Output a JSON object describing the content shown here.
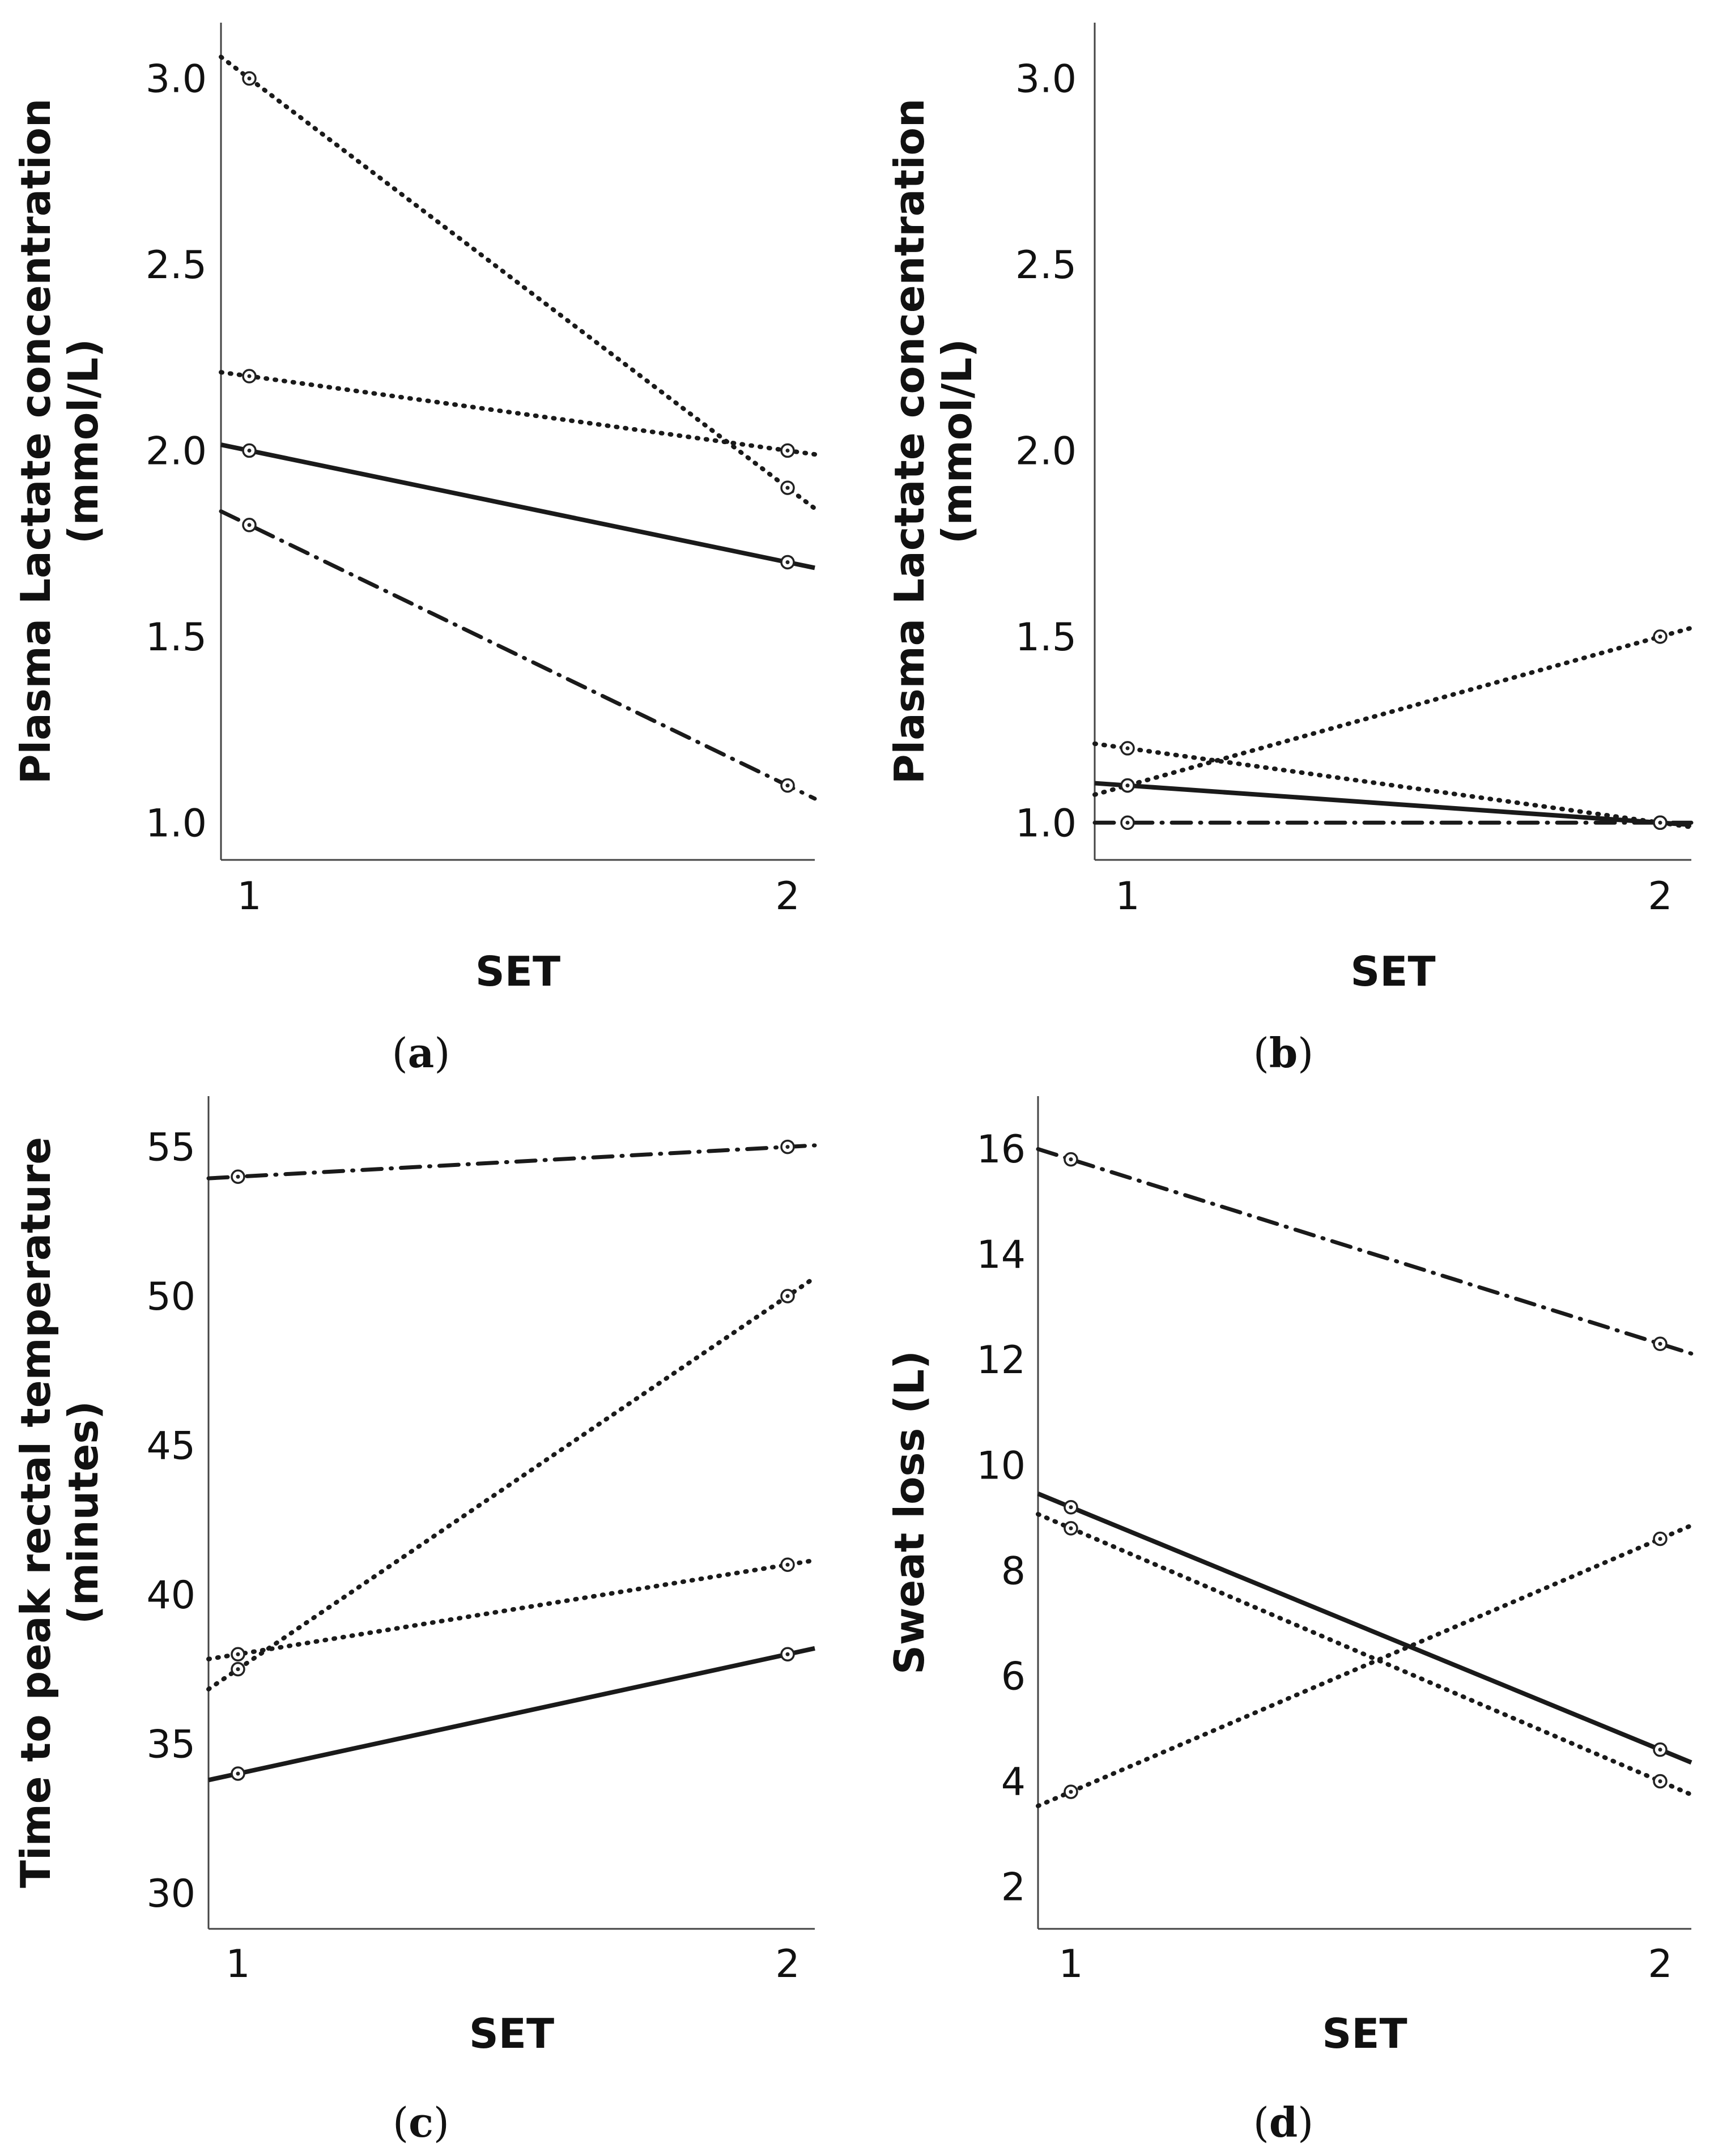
{
  "figure": {
    "panels": [
      {
        "id": "a",
        "label_open": "(",
        "label_letter": "a",
        "label_close": ")"
      },
      {
        "id": "b",
        "label_open": "(",
        "label_letter": "b",
        "label_close": ")"
      },
      {
        "id": "c",
        "label_open": "(",
        "label_letter": "c",
        "label_close": ")"
      },
      {
        "id": "d",
        "label_open": "(",
        "label_letter": "d",
        "label_close": ")"
      }
    ]
  },
  "chart_data": [
    {
      "id": "a",
      "type": "line",
      "xlabel": "SET",
      "ylabel": [
        "Plasma Lactate concentration",
        "(mmol/L)"
      ],
      "categories": [
        "1",
        "2"
      ],
      "ylim": [
        0.9,
        3.15
      ],
      "yticks": [
        1.0,
        1.5,
        2.0,
        2.5,
        3.0
      ],
      "ytick_labels": [
        "1.0",
        "1.5",
        "2.0",
        "2.5",
        "3.0"
      ],
      "series": [
        {
          "name": "dotted-1",
          "style": "dotted",
          "values": [
            3.0,
            1.9
          ]
        },
        {
          "name": "dotted-2",
          "style": "dotted",
          "values": [
            2.2,
            2.0
          ]
        },
        {
          "name": "solid",
          "style": "solid",
          "values": [
            2.0,
            1.7
          ]
        },
        {
          "name": "dash-dot",
          "style": "dashdot",
          "values": [
            1.8,
            1.1
          ]
        }
      ]
    },
    {
      "id": "b",
      "type": "line",
      "xlabel": "SET",
      "ylabel": [
        "Plasma Lactate concentration",
        "(mmol/L)"
      ],
      "categories": [
        "1",
        "2"
      ],
      "ylim": [
        0.9,
        3.15
      ],
      "yticks": [
        1.0,
        1.5,
        2.0,
        2.5,
        3.0
      ],
      "ytick_labels": [
        "1.0",
        "1.5",
        "2.0",
        "2.5",
        "3.0"
      ],
      "series": [
        {
          "name": "dotted-1",
          "style": "dotted",
          "values": [
            1.2,
            1.0
          ]
        },
        {
          "name": "dotted-2",
          "style": "dotted",
          "values": [
            1.1,
            1.5
          ]
        },
        {
          "name": "solid",
          "style": "solid",
          "values": [
            1.1,
            1.0
          ]
        },
        {
          "name": "dash-dot",
          "style": "dashdot",
          "values": [
            1.0,
            1.0
          ]
        }
      ]
    },
    {
      "id": "c",
      "type": "line",
      "xlabel": "SET",
      "ylabel": [
        "Time to peak rectal temperature",
        "(minutes)"
      ],
      "categories": [
        "1",
        "2"
      ],
      "ylim": [
        28.8,
        56.7
      ],
      "yticks": [
        30,
        35,
        40,
        45,
        50,
        55
      ],
      "ytick_labels": [
        "30",
        "35",
        "40",
        "45",
        "50",
        "55"
      ],
      "series": [
        {
          "name": "dotted-1",
          "style": "dotted",
          "values": [
            37.5,
            50.0
          ]
        },
        {
          "name": "dotted-2",
          "style": "dotted",
          "values": [
            38.0,
            41.0
          ]
        },
        {
          "name": "solid",
          "style": "solid",
          "values": [
            34.0,
            38.0
          ]
        },
        {
          "name": "dash-dot",
          "style": "dashdot",
          "values": [
            54.0,
            55.0
          ]
        }
      ]
    },
    {
      "id": "d",
      "type": "line",
      "xlabel": "SET",
      "ylabel": [
        "Sweat loss (L)"
      ],
      "categories": [
        "1",
        "2"
      ],
      "ylim": [
        1.2,
        17.0
      ],
      "yticks": [
        2,
        4,
        6,
        8,
        10,
        12,
        14,
        16
      ],
      "ytick_labels": [
        "2",
        "4",
        "6",
        "8",
        "10",
        "12",
        "14",
        "16"
      ],
      "series": [
        {
          "name": "dotted-1",
          "style": "dotted",
          "values": [
            8.8,
            4.0
          ]
        },
        {
          "name": "dotted-2",
          "style": "dotted",
          "values": [
            3.8,
            8.6
          ]
        },
        {
          "name": "solid",
          "style": "solid",
          "values": [
            9.2,
            4.6
          ]
        },
        {
          "name": "dash-dot",
          "style": "dashdot",
          "values": [
            15.8,
            12.3
          ]
        }
      ]
    }
  ]
}
